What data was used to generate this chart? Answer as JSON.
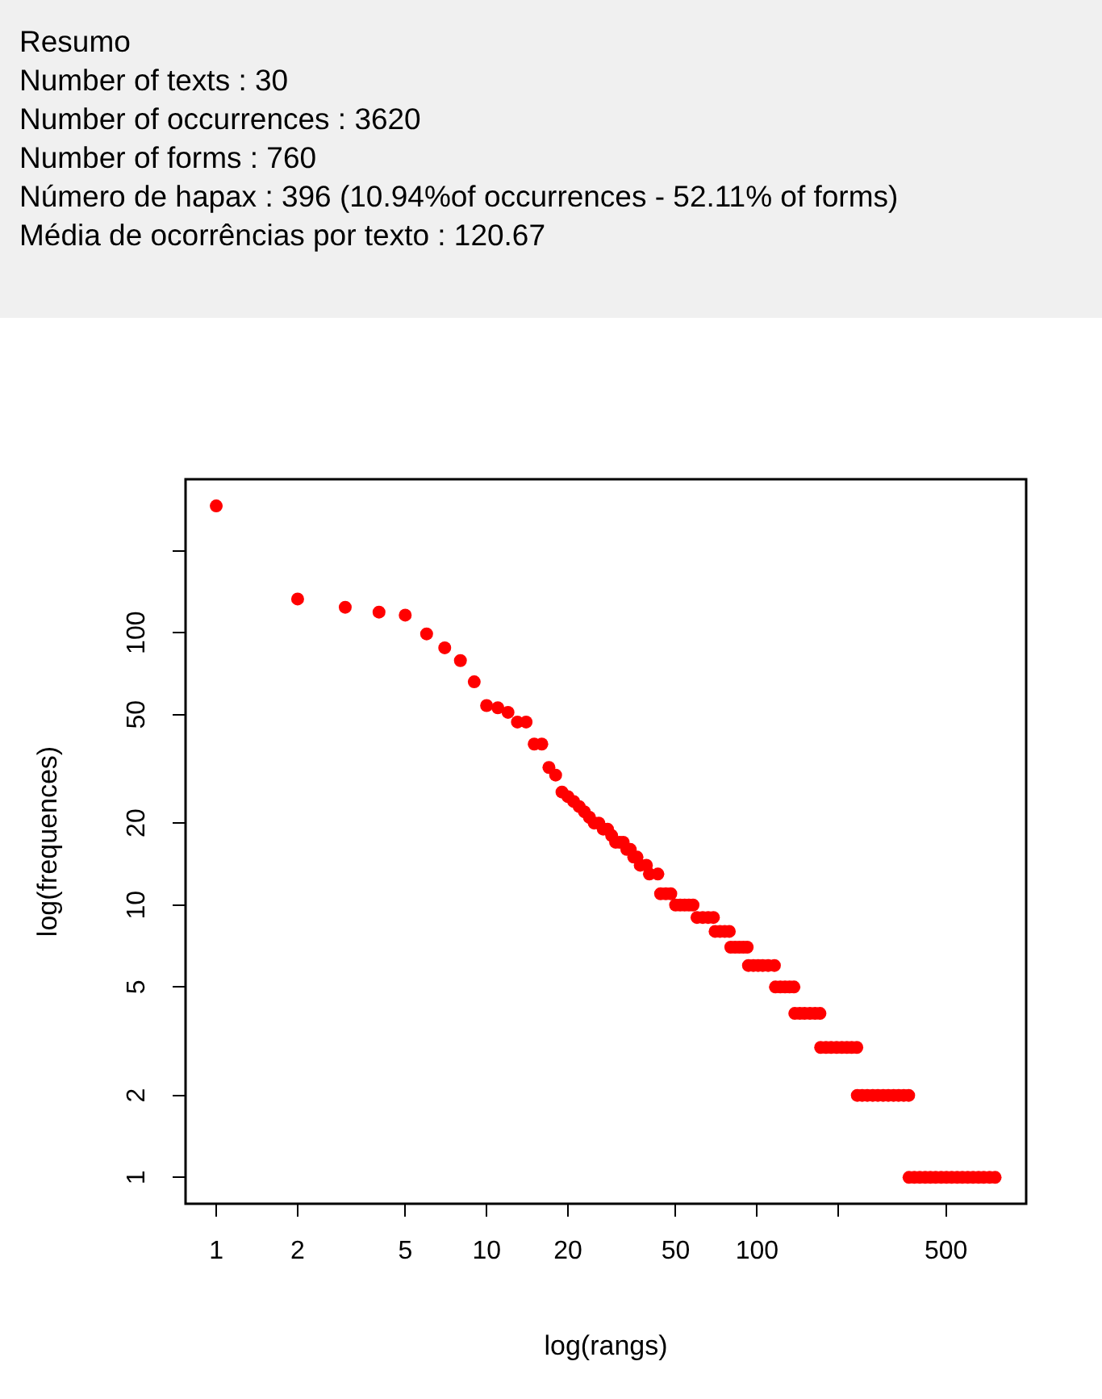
{
  "chart_data": {
    "type": "scatter",
    "title": "Resumo",
    "annotations": [
      "Number of texts : 30",
      "Number of occurrences : 3620",
      "Number of forms : 760",
      "Número de hapax : 396 (10.94%of occurrences - 52.11% of forms)",
      "Média de ocorrências por texto : 120.67"
    ],
    "xlabel": "log(rangs)",
    "ylabel": "log(frequences)",
    "log": "xy",
    "grid": false,
    "legend": false,
    "marker": "circle",
    "xlim": [
      0.77,
      990
    ],
    "ylim": [
      0.8,
      366
    ],
    "xticks": [
      1,
      2,
      5,
      10,
      20,
      50,
      100,
      {
        "value": 200,
        "label": null
      },
      500
    ],
    "yticks": [
      1,
      2,
      5,
      10,
      20,
      50,
      100,
      {
        "value": 200,
        "label": null
      }
    ],
    "series": [
      {
        "color": "#ff0000",
        "x": [
          1,
          2,
          3,
          4,
          5,
          6,
          7,
          8,
          9,
          10,
          11,
          12,
          13,
          14,
          15,
          16,
          17,
          18,
          19,
          20,
          21,
          22,
          23,
          24,
          25,
          26,
          27,
          28,
          29,
          30,
          31,
          32,
          33,
          34,
          35,
          36,
          37,
          39,
          40,
          43,
          44,
          46,
          48,
          50,
          52,
          54,
          56,
          58,
          60,
          63,
          66,
          69,
          70,
          73,
          76,
          79,
          80,
          83,
          86,
          89,
          92,
          93,
          97,
          101,
          105,
          110,
          116,
          117,
          122,
          127,
          132,
          137,
          138,
          144,
          150,
          157,
          164,
          171,
          172,
          180,
          188,
          197,
          206,
          215,
          224,
          234,
          235,
          245,
          256,
          268,
          280,
          293,
          306,
          320,
          334,
          349,
          364,
          365,
          382,
          400,
          419,
          438,
          458,
          480,
          502,
          525,
          550,
          575,
          602,
          630,
          660,
          690,
          725,
          760
        ],
        "values": [
          292,
          133,
          124,
          119,
          116,
          99,
          88,
          79,
          66,
          54,
          53,
          51,
          47,
          47,
          39,
          39,
          32,
          30,
          26,
          25,
          24,
          23,
          22,
          21,
          20,
          20,
          19,
          19,
          18,
          17,
          17,
          17,
          16,
          16,
          15,
          15,
          14,
          14,
          13,
          13,
          11,
          11,
          11,
          10,
          10,
          10,
          10,
          10,
          9,
          9,
          9,
          9,
          8,
          8,
          8,
          8,
          7,
          7,
          7,
          7,
          7,
          6,
          6,
          6,
          6,
          6,
          6,
          5,
          5,
          5,
          5,
          5,
          4,
          4,
          4,
          4,
          4,
          4,
          3,
          3,
          3,
          3,
          3,
          3,
          3,
          3,
          2,
          2,
          2,
          2,
          2,
          2,
          2,
          2,
          2,
          2,
          2,
          1,
          1,
          1,
          1,
          1,
          1,
          1,
          1,
          1,
          1,
          1,
          1,
          1,
          1,
          1,
          1,
          1
        ]
      }
    ]
  }
}
